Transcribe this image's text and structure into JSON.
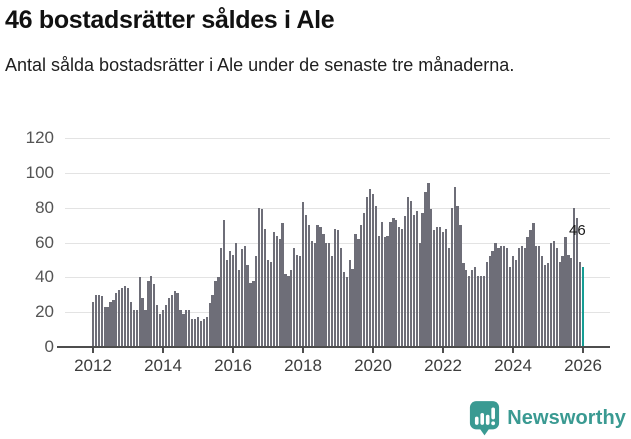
{
  "header": {
    "title": "46 bostadsrätter såldes i Ale",
    "subtitle": "Antal sålda bostadsrätter i Ale under de senaste tre månaderna."
  },
  "chart_data": {
    "type": "bar",
    "title": "46 bostadsrätter såldes i Ale",
    "xlabel": "",
    "ylabel": "",
    "ylim": [
      0,
      120
    ],
    "yticks": [
      0,
      20,
      40,
      60,
      80,
      100,
      120
    ],
    "xticks": [
      "2012",
      "2014",
      "2016",
      "2018",
      "2020",
      "2022",
      "2024",
      "2026"
    ],
    "grid": true,
    "frequency": "monthly",
    "x_start": "2012-01",
    "x_end": "2026-01",
    "bar_color": "#6e6e78",
    "highlight_color": "#169d94",
    "annotation": {
      "label": "46",
      "value": 46
    },
    "values": [
      26,
      30,
      30,
      29,
      23,
      23,
      26,
      27,
      31,
      33,
      34,
      35,
      34,
      26,
      21,
      21,
      40,
      28,
      21,
      38,
      41,
      36,
      24,
      19,
      21,
      24,
      28,
      30,
      32,
      31,
      21,
      19,
      21,
      21,
      16,
      16,
      17,
      15,
      16,
      17,
      25,
      30,
      38,
      40,
      57,
      73,
      50,
      55,
      53,
      60,
      44,
      56,
      58,
      47,
      37,
      38,
      52,
      80,
      79,
      68,
      50,
      49,
      66,
      64,
      62,
      71,
      42,
      41,
      44,
      57,
      53,
      52,
      83,
      76,
      70,
      61,
      60,
      70,
      69,
      65,
      60,
      60,
      52,
      68,
      67,
      57,
      43,
      40,
      50,
      45,
      65,
      62,
      70,
      77,
      86,
      91,
      88,
      81,
      64,
      72,
      63,
      64,
      72,
      74,
      73,
      69,
      68,
      75,
      86,
      84,
      76,
      78,
      60,
      77,
      89,
      94,
      79,
      67,
      69,
      69,
      66,
      68,
      57,
      80,
      92,
      81,
      70,
      48,
      44,
      41,
      44,
      46,
      41,
      41,
      41,
      49,
      52,
      55,
      60,
      57,
      58,
      58,
      57,
      46,
      52,
      50,
      57,
      58,
      57,
      63,
      67,
      71,
      58,
      58,
      52,
      47,
      48,
      60,
      61,
      57,
      49,
      52,
      63,
      53,
      51,
      80,
      74,
      49,
      46
    ]
  },
  "footer": {
    "brand": "Newsworthy",
    "brand_color": "#3a9a92",
    "icon": "newsworthy-chart-bubble-icon"
  }
}
